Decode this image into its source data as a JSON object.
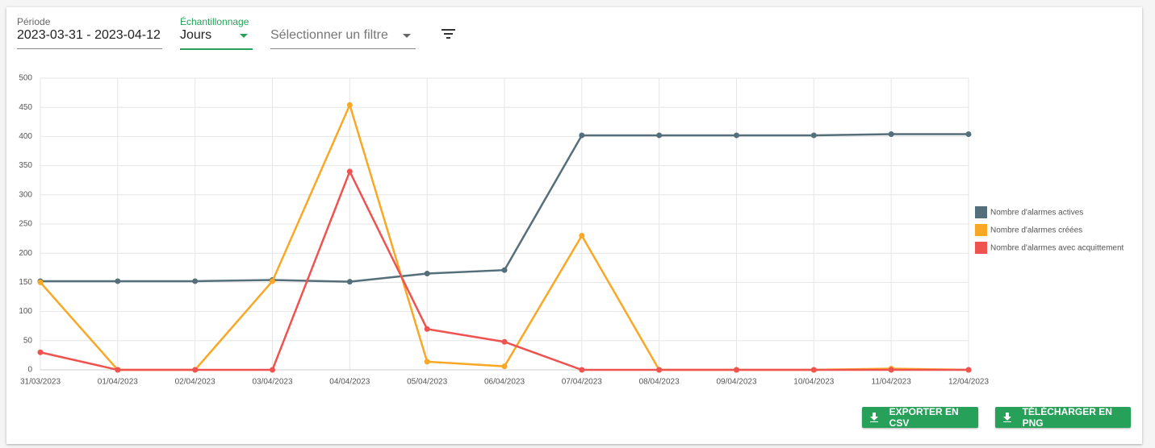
{
  "filters": {
    "period_label": "Période",
    "period_value": "2023-03-31 - 2023-04-12",
    "sampling_label": "Échantillonnage",
    "sampling_value": "Jours",
    "filter_placeholder": "Sélectionner un filtre"
  },
  "buttons": {
    "export_csv": "EXPORTER EN CSV",
    "download_png": "TÉLÉCHARGER EN PNG"
  },
  "chart_data": {
    "type": "line",
    "categories": [
      "31/03/2023",
      "01/04/2023",
      "02/04/2023",
      "03/04/2023",
      "04/04/2023",
      "05/04/2023",
      "06/04/2023",
      "07/04/2023",
      "08/04/2023",
      "09/04/2023",
      "10/04/2023",
      "11/04/2023",
      "12/04/2023"
    ],
    "series": [
      {
        "name": "Nombre d'alarmes actives",
        "color": "#546e7a",
        "values": [
          152,
          152,
          152,
          154,
          151,
          165,
          171,
          402,
          402,
          402,
          402,
          404,
          404
        ]
      },
      {
        "name": "Nombre d'alarmes créées",
        "color": "#f9a825",
        "values": [
          150,
          0,
          0,
          152,
          454,
          14,
          6,
          230,
          0,
          0,
          0,
          2,
          0
        ]
      },
      {
        "name": "Nombre d'alarmes avec acquittement",
        "color": "#ef5350",
        "values": [
          30,
          0,
          0,
          0,
          340,
          70,
          48,
          0,
          0,
          0,
          0,
          0,
          0
        ]
      }
    ],
    "ylim": [
      0,
      500
    ],
    "yticks": [
      0,
      50,
      100,
      150,
      200,
      250,
      300,
      350,
      400,
      450,
      500
    ],
    "grid": true,
    "legend": "right"
  }
}
